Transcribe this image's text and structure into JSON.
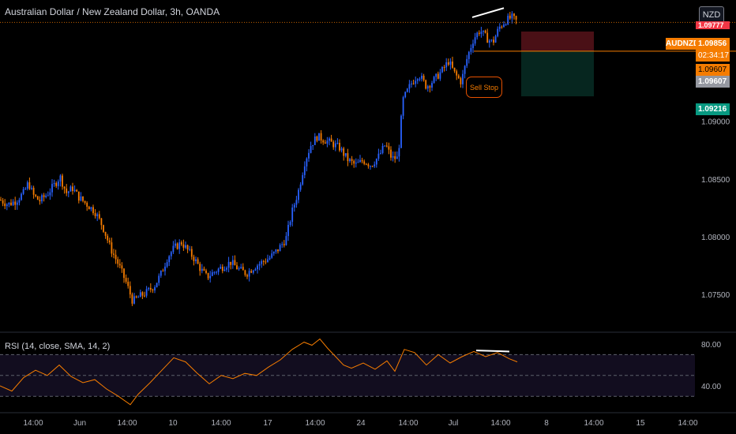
{
  "header": {
    "title": "Australian Dollar / New Zealand Dollar, 3h, OANDA",
    "currency_button": "NZD"
  },
  "rsi_panel": {
    "label": "RSI (14, close, SMA, 14, 2)",
    "y_ticks": [
      "80.00",
      "40.00"
    ]
  },
  "annotation": {
    "sell_stop": "Sell Stop"
  },
  "price_tags": {
    "symbol": "AUDNZD",
    "last_price": "1.09856",
    "countdown": "02:34:17",
    "stop_price": "1.09607",
    "stop_price_2": "1.09607",
    "take_profit": "1.09216",
    "stop_loss": "1.09777"
  },
  "colors": {
    "up": "#2962ff",
    "down": "#f57c00",
    "rsi_line": "#f57c00",
    "loss_zone": "#4a1016",
    "profit_zone": "#06261f",
    "background": "#000000"
  },
  "chart_data": [
    {
      "type": "candlestick",
      "series_label": "AUDNZD",
      "y_ticks": [
        1.09,
        1.085,
        1.08,
        1.075
      ],
      "y_tick_labels": [
        "1.09000",
        "1.08500",
        "1.08000",
        "1.07500"
      ],
      "ylim": [
        1.0718,
        1.1005
      ],
      "x_tick_labels": [
        "14:00",
        "Jun",
        "14:00",
        "10",
        "14:00",
        "17",
        "14:00",
        "24",
        "14:00",
        "Jul",
        "14:00",
        "8",
        "14:00",
        "15",
        "14:00"
      ],
      "close_path": [
        [
          0,
          1.0832
        ],
        [
          10,
          1.0828
        ],
        [
          20,
          1.0831
        ],
        [
          30,
          1.0838
        ],
        [
          36,
          1.0847
        ],
        [
          42,
          1.0836
        ],
        [
          50,
          1.0831
        ],
        [
          60,
          1.0837
        ],
        [
          70,
          1.0846
        ],
        [
          76,
          1.0852
        ],
        [
          84,
          1.0838
        ],
        [
          92,
          1.0842
        ],
        [
          100,
          1.0834
        ],
        [
          110,
          1.0828
        ],
        [
          120,
          1.0822
        ],
        [
          130,
          1.0809
        ],
        [
          140,
          1.079
        ],
        [
          150,
          1.0776
        ],
        [
          160,
          1.076
        ],
        [
          168,
          1.0744
        ],
        [
          176,
          1.0748
        ],
        [
          186,
          1.0752
        ],
        [
          196,
          1.0758
        ],
        [
          204,
          1.0768
        ],
        [
          212,
          1.0782
        ],
        [
          220,
          1.079
        ],
        [
          230,
          1.0795
        ],
        [
          238,
          1.0788
        ],
        [
          246,
          1.0781
        ],
        [
          254,
          1.0772
        ],
        [
          262,
          1.0765
        ],
        [
          272,
          1.077
        ],
        [
          282,
          1.0774
        ],
        [
          292,
          1.0778
        ],
        [
          302,
          1.0772
        ],
        [
          312,
          1.0768
        ],
        [
          322,
          1.0774
        ],
        [
          332,
          1.0778
        ],
        [
          342,
          1.0782
        ],
        [
          352,
          1.0789
        ],
        [
          362,
          1.0798
        ],
        [
          370,
          1.0822
        ],
        [
          378,
          1.084
        ],
        [
          386,
          1.0865
        ],
        [
          394,
          1.088
        ],
        [
          402,
          1.0887
        ],
        [
          410,
          1.0884
        ],
        [
          420,
          1.0881
        ],
        [
          430,
          1.0877
        ],
        [
          440,
          1.0867
        ],
        [
          450,
          1.0862
        ],
        [
          460,
          1.0866
        ],
        [
          470,
          1.0862
        ],
        [
          480,
          1.087
        ],
        [
          488,
          1.088
        ],
        [
          496,
          1.0868
        ],
        [
          504,
          1.0868
        ],
        [
          510,
          1.0918
        ],
        [
          520,
          1.0932
        ],
        [
          530,
          1.0941
        ],
        [
          540,
          1.093
        ],
        [
          550,
          1.0936
        ],
        [
          560,
          1.0944
        ],
        [
          568,
          1.0952
        ],
        [
          576,
          1.0941
        ],
        [
          584,
          1.0934
        ],
        [
          592,
          1.0956
        ],
        [
          600,
          1.0972
        ],
        [
          608,
          1.0979
        ],
        [
          616,
          1.0972
        ],
        [
          624,
          1.0968
        ],
        [
          632,
          1.0981
        ],
        [
          640,
          1.0987
        ],
        [
          648,
          1.099
        ],
        [
          655,
          1.0986
        ]
      ],
      "drawing": {
        "type": "trend-line",
        "from": [
          598,
          1.099
        ],
        "to": [
          638,
          1.0998
        ]
      },
      "position": {
        "type": "short",
        "entry": 1.09607,
        "stop": 1.09777,
        "target": 1.09216,
        "x_from": 660,
        "x_to": 752
      }
    },
    {
      "type": "line",
      "series_label": "RSI (14, close, SMA, 14, 2)",
      "ylim": [
        15,
        90
      ],
      "y_ticks": [
        80,
        40
      ],
      "band": [
        30,
        70
      ],
      "midline": 50,
      "values": [
        [
          0,
          40
        ],
        [
          15,
          35
        ],
        [
          30,
          48
        ],
        [
          45,
          55
        ],
        [
          60,
          50
        ],
        [
          75,
          60
        ],
        [
          90,
          49
        ],
        [
          105,
          43
        ],
        [
          120,
          46
        ],
        [
          135,
          37
        ],
        [
          150,
          30
        ],
        [
          165,
          22
        ],
        [
          175,
          32
        ],
        [
          190,
          43
        ],
        [
          205,
          55
        ],
        [
          220,
          67
        ],
        [
          235,
          63
        ],
        [
          250,
          52
        ],
        [
          265,
          42
        ],
        [
          280,
          50
        ],
        [
          295,
          47
        ],
        [
          310,
          52
        ],
        [
          325,
          50
        ],
        [
          340,
          58
        ],
        [
          355,
          65
        ],
        [
          370,
          75
        ],
        [
          385,
          82
        ],
        [
          395,
          79
        ],
        [
          405,
          85
        ],
        [
          415,
          76
        ],
        [
          425,
          68
        ],
        [
          435,
          60
        ],
        [
          445,
          57
        ],
        [
          460,
          62
        ],
        [
          475,
          56
        ],
        [
          490,
          64
        ],
        [
          500,
          54
        ],
        [
          512,
          75
        ],
        [
          525,
          72
        ],
        [
          540,
          60
        ],
        [
          555,
          70
        ],
        [
          570,
          62
        ],
        [
          585,
          68
        ],
        [
          600,
          73
        ],
        [
          615,
          68
        ],
        [
          630,
          72
        ],
        [
          645,
          66
        ],
        [
          655,
          63
        ]
      ],
      "drawing": {
        "type": "trend-line",
        "from": [
          603,
          74
        ],
        "to": [
          645,
          73
        ]
      },
      "x_tick_labels": [
        "14:00",
        "Jun",
        "14:00",
        "10",
        "14:00",
        "17",
        "14:00",
        "24",
        "14:00",
        "Jul",
        "14:00",
        "8",
        "14:00",
        "15",
        "14:00"
      ]
    }
  ]
}
